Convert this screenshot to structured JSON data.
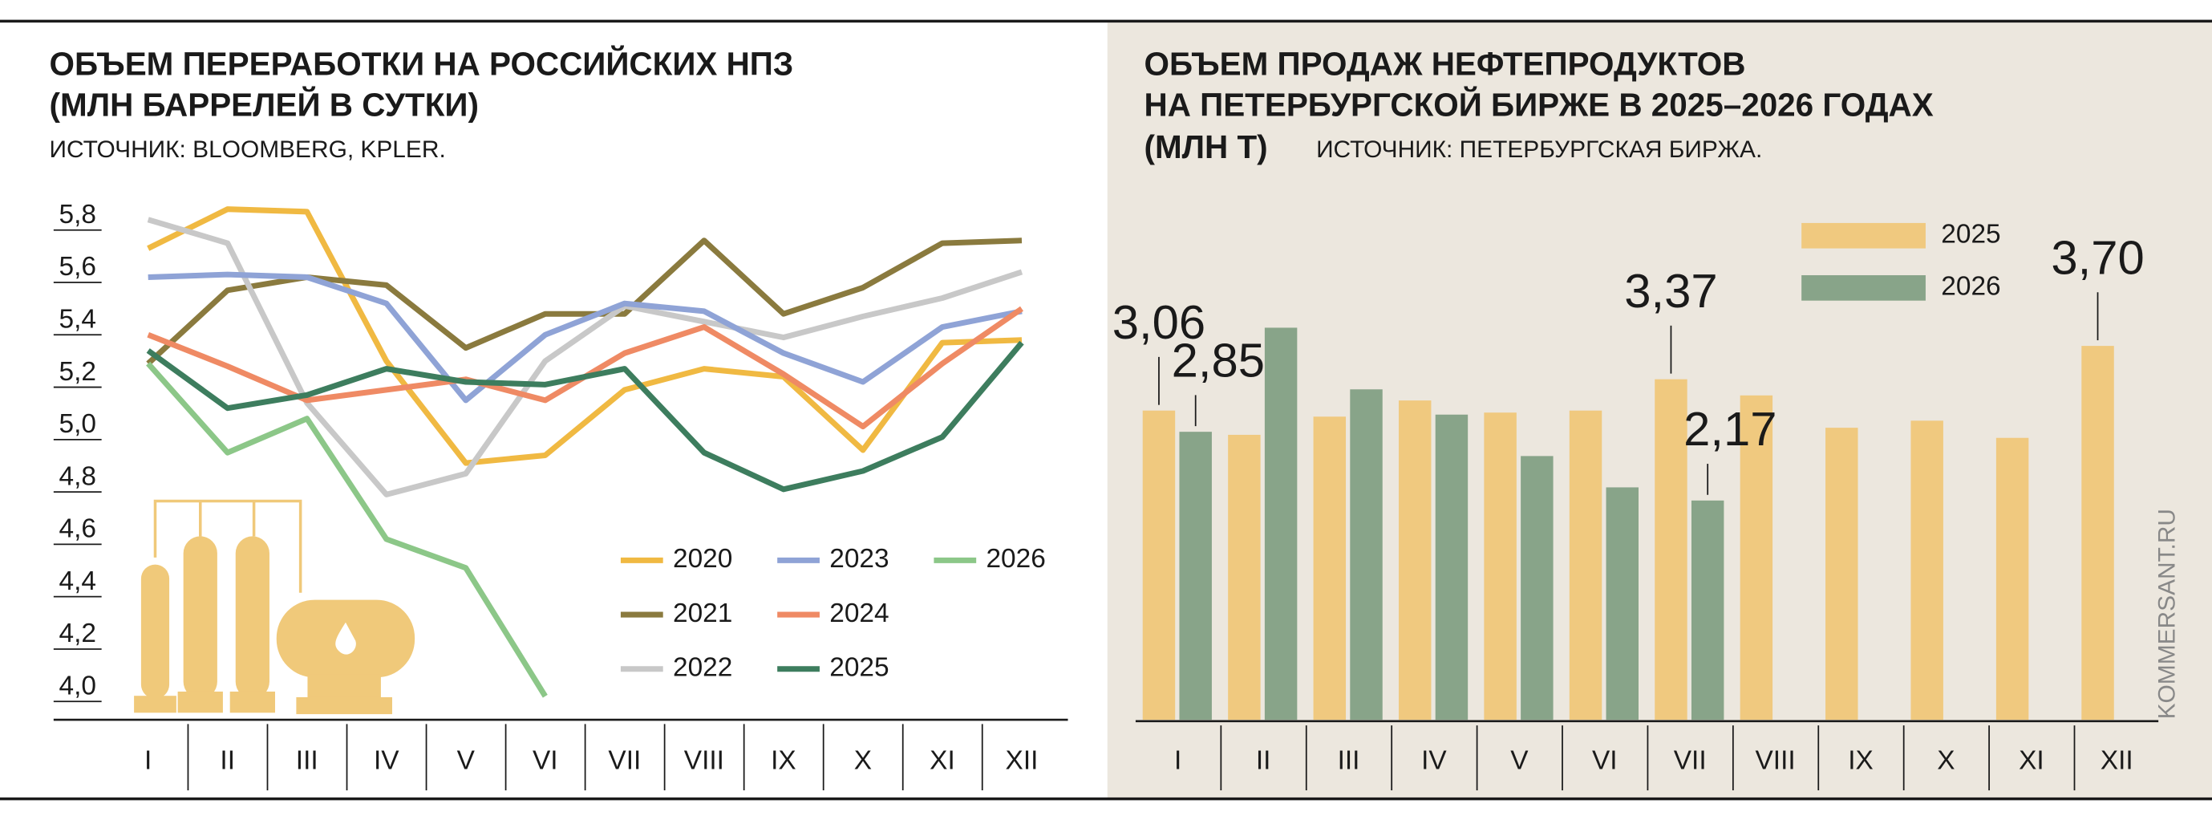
{
  "chart_data": [
    {
      "type": "line",
      "title": [
        "ОБЪЕМ ПЕРЕРАБОТКИ НА РОССИЙСКИХ НПЗ",
        "(МЛН БАРРЕЛЕЙ В СУТКИ)"
      ],
      "source": "ИСТОЧНИК: BLOOMBERG, KPLER.",
      "categories": [
        "I",
        "II",
        "III",
        "IV",
        "V",
        "VI",
        "VII",
        "VIII",
        "IX",
        "X",
        "XI",
        "XII"
      ],
      "ylim": [
        4.0,
        5.8
      ],
      "yticks": [
        {
          "value": 4.0,
          "label": "4,0"
        },
        {
          "value": 4.2,
          "label": "4,2"
        },
        {
          "value": 4.4,
          "label": "4,4"
        },
        {
          "value": 4.6,
          "label": "4,6"
        },
        {
          "value": 4.8,
          "label": "4,8"
        },
        {
          "value": 5.0,
          "label": "5,0"
        },
        {
          "value": 5.2,
          "label": "5,2"
        },
        {
          "value": 5.4,
          "label": "5,4"
        },
        {
          "value": 5.6,
          "label": "5,6"
        },
        {
          "value": 5.8,
          "label": "5,8"
        }
      ],
      "series": [
        {
          "name": "2020",
          "color": "#f0b942",
          "values": [
            5.73,
            5.88,
            5.87,
            5.3,
            4.91,
            4.94,
            5.19,
            5.27,
            5.24,
            4.96,
            5.37,
            5.38
          ]
        },
        {
          "name": "2021",
          "color": "#8a7a3e",
          "values": [
            5.29,
            5.57,
            5.62,
            5.59,
            5.35,
            5.48,
            5.48,
            5.76,
            5.48,
            5.58,
            5.75,
            5.76
          ]
        },
        {
          "name": "2022",
          "color": "#c8c8c8",
          "values": [
            5.84,
            5.75,
            5.14,
            4.79,
            4.87,
            5.3,
            5.51,
            5.45,
            5.39,
            5.47,
            5.54,
            5.64
          ]
        },
        {
          "name": "2023",
          "color": "#8fa3d6",
          "values": [
            5.62,
            5.63,
            5.62,
            5.52,
            5.15,
            5.4,
            5.52,
            5.49,
            5.33,
            5.22,
            5.43,
            5.49
          ]
        },
        {
          "name": "2024",
          "color": "#ef8a64",
          "values": [
            5.4,
            5.28,
            5.15,
            5.19,
            5.23,
            5.15,
            5.33,
            5.43,
            5.25,
            5.05,
            5.29,
            5.5
          ]
        },
        {
          "name": "2025",
          "color": "#3d7d5e",
          "values": [
            5.34,
            5.12,
            5.17,
            5.27,
            5.22,
            5.21,
            5.27,
            4.95,
            4.81,
            4.88,
            5.01,
            5.37
          ]
        },
        {
          "name": "2026",
          "color": "#8cc788",
          "values": [
            5.29,
            4.95,
            5.08,
            4.62,
            4.51,
            4.02,
            null,
            null,
            null,
            null,
            null,
            null
          ]
        }
      ]
    },
    {
      "type": "bar",
      "title": [
        "ОБЪЕМ ПРОДАЖ НЕФТЕПРОДУКТОВ",
        "НА ПЕТЕРБУРГСКОЙ БИРЖЕ В 2025–2026 ГОДАХ",
        "(МЛН Т)"
      ],
      "source": "ИСТОЧНИК: ПЕТЕРБУРГСКАЯ БИРЖА.",
      "watermark": "KOMMERSANT.RU",
      "categories": [
        "I",
        "II",
        "III",
        "IV",
        "V",
        "VI",
        "VII",
        "VIII",
        "IX",
        "X",
        "XI",
        "XII"
      ],
      "series": [
        {
          "name": "2025",
          "color": "#f0c97f",
          "values": [
            3.06,
            2.82,
            3.0,
            3.16,
            3.04,
            3.06,
            3.37,
            3.21,
            2.89,
            2.96,
            2.79,
            3.7
          ],
          "value_labels": [
            "3,06",
            null,
            null,
            null,
            null,
            null,
            "3,37",
            null,
            null,
            null,
            null,
            "3,70"
          ]
        },
        {
          "name": "2026",
          "color": "#88a489",
          "values": [
            2.85,
            3.88,
            3.27,
            3.02,
            2.61,
            2.3,
            2.17,
            null,
            null,
            null,
            null,
            null
          ],
          "value_labels": [
            "2,85",
            null,
            null,
            null,
            null,
            null,
            "2,17",
            null,
            null,
            null,
            null,
            null
          ]
        }
      ]
    }
  ]
}
